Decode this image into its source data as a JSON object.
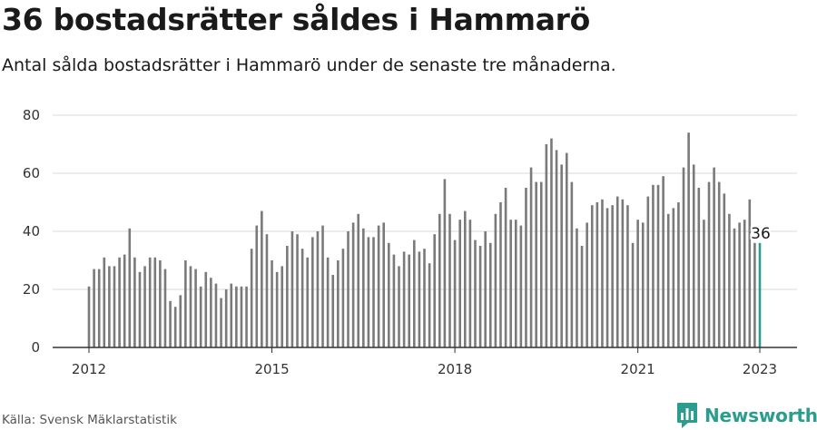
{
  "header": {
    "title": "36 bostadsrätter såldes i Hammarö",
    "subtitle": "Antal sålda bostadsrätter i Hammarö under de senaste tre månaderna."
  },
  "footer": {
    "source": "Källa: Svensk Mäklarstatistik",
    "brand": "Newsworthy",
    "brand_icon": "bar-chart-logo-icon"
  },
  "colors": {
    "bar": "#7a7a7a",
    "highlight": "#2a9d8f",
    "grid": "#d9d9d9",
    "axis": "#333333"
  },
  "chart_data": {
    "type": "bar",
    "title": "36 bostadsrätter såldes i Hammarö",
    "subtitle": "Antal sålda bostadsrätter i Hammarö under de senaste tre månaderna.",
    "xlabel": "",
    "ylabel": "",
    "ylim": [
      0,
      80
    ],
    "yticks": [
      0,
      20,
      40,
      60,
      80
    ],
    "xticks": [
      "2012",
      "2015",
      "2018",
      "2021",
      "2023"
    ],
    "grid": true,
    "start_period": "2012-01",
    "end_period": "2023-01",
    "highlight_last": true,
    "annotation": "36",
    "values": [
      21,
      27,
      27,
      31,
      28,
      28,
      31,
      32,
      41,
      31,
      26,
      28,
      31,
      31,
      30,
      27,
      16,
      14,
      18,
      30,
      28,
      27,
      21,
      26,
      24,
      22,
      17,
      20,
      22,
      21,
      21,
      21,
      34,
      42,
      47,
      39,
      30,
      26,
      28,
      35,
      40,
      39,
      34,
      31,
      38,
      40,
      42,
      31,
      25,
      30,
      34,
      40,
      43,
      46,
      41,
      38,
      38,
      42,
      43,
      36,
      32,
      28,
      33,
      32,
      37,
      33,
      34,
      29,
      39,
      46,
      58,
      46,
      37,
      44,
      47,
      44,
      37,
      35,
      40,
      36,
      46,
      50,
      55,
      44,
      44,
      42,
      55,
      62,
      57,
      57,
      70,
      72,
      68,
      63,
      67,
      57,
      41,
      35,
      43,
      49,
      50,
      51,
      48,
      49,
      52,
      51,
      49,
      36,
      44,
      43,
      52,
      56,
      56,
      59,
      46,
      48,
      50,
      62,
      74,
      63,
      55,
      44,
      57,
      62,
      57,
      53,
      46,
      41,
      43,
      44,
      51,
      36,
      36
    ]
  }
}
